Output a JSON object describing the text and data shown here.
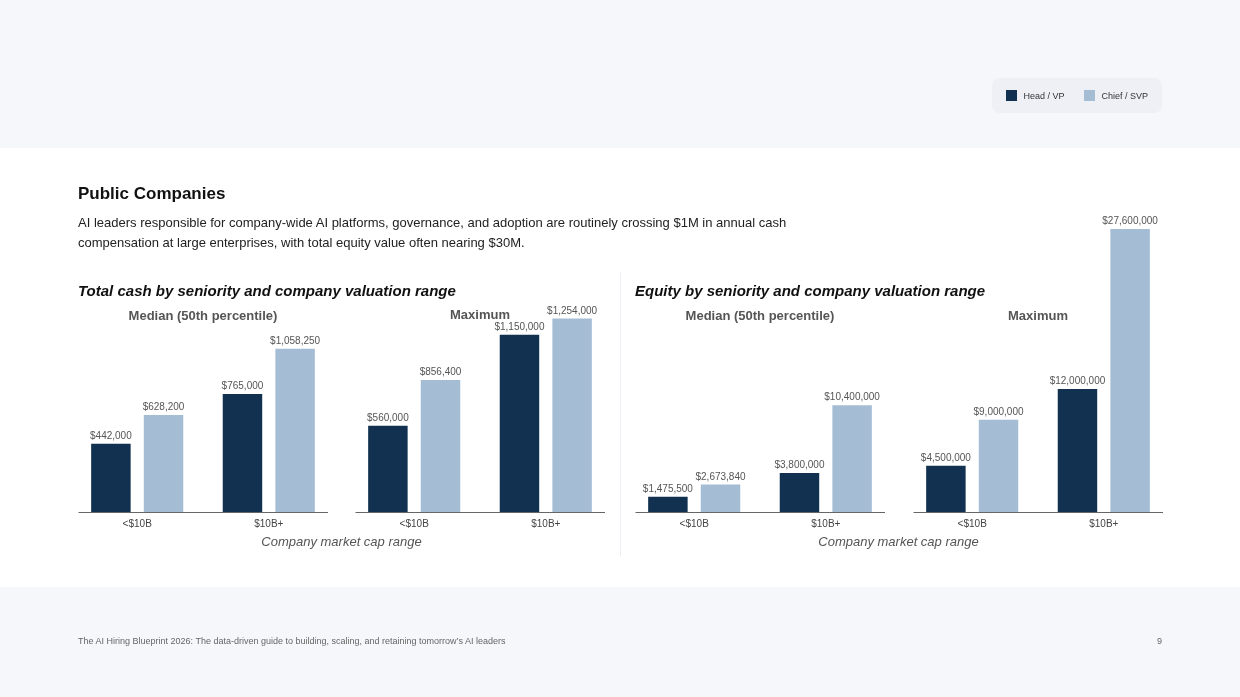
{
  "chart_data": [
    {
      "type": "other",
      "title": "Public Companies",
      "subtitle": "AI leaders responsible for company-wide AI platforms, governance, and adoption are routinely crossing $1M in annual cash compensation at large enterprises, with total equity value often nearing $30M.",
      "annotations": [
        "The AI Hiring Blueprint 2026: The data-driven guide to building, scaling, and retaining tomorrow’s AI leaders",
        "9"
      ]
    },
    {
      "type": "bar",
      "title": "Median (50th percentile)",
      "xlabel": "Company market cap range",
      "annotations": [
        "Total cash by seniority and company valuation range"
      ],
      "legend": "top right",
      "categories": [
        "<$10B",
        "$10B+"
      ],
      "series": [
        {
          "name": "Head / VP",
          "color": "#12304f",
          "values": [
            442000,
            765000
          ],
          "value_labels": [
            "$442,000",
            "$765,000"
          ]
        },
        {
          "name": "Chief / SVP",
          "color": "#a4bdd5",
          "values": [
            628200,
            1058250
          ],
          "value_labels": [
            "$628,200",
            "$1,058,250"
          ]
        }
      ]
    },
    {
      "type": "bar",
      "title": "Maximum",
      "categories": [
        "<$10B",
        "$10B+"
      ],
      "series": [
        {
          "name": "Head / VP",
          "color": "#12304f",
          "values": [
            560000,
            1150000
          ],
          "value_labels": [
            "$560,000",
            "$1,150,000"
          ]
        },
        {
          "name": "Chief / SVP",
          "color": "#a4bdd5",
          "values": [
            856400,
            1254000
          ],
          "value_labels": [
            "$856,400",
            "$1,254,000"
          ]
        }
      ]
    },
    {
      "type": "bar",
      "title": "Median (50th percentile)",
      "xlabel": "Company market cap range",
      "annotations": [
        "Equity by seniority and company valuation range"
      ],
      "categories": [
        "<$10B",
        "$10B+"
      ],
      "series": [
        {
          "name": "Head / VP",
          "color": "#12304f",
          "values": [
            1475500,
            3800000
          ],
          "value_labels": [
            "$1,475,500",
            "$3,800,000"
          ]
        },
        {
          "name": "Chief / SVP",
          "color": "#a4bdd5",
          "values": [
            2673840,
            10400000
          ],
          "value_labels": [
            "$2,673,840",
            "$10,400,000"
          ]
        }
      ]
    },
    {
      "type": "bar",
      "title": "Maximum",
      "categories": [
        "<$10B",
        "$10B+"
      ],
      "series": [
        {
          "name": "Head / VP",
          "color": "#12304f",
          "values": [
            4500000,
            12000000
          ],
          "value_labels": [
            "$4,500,000",
            "$12,000,000"
          ]
        },
        {
          "name": "Chief / SVP",
          "color": "#a4bdd5",
          "values": [
            9000000,
            27600000
          ],
          "value_labels": [
            "$9,000,000",
            "$27,600,000"
          ]
        }
      ]
    }
  ]
}
